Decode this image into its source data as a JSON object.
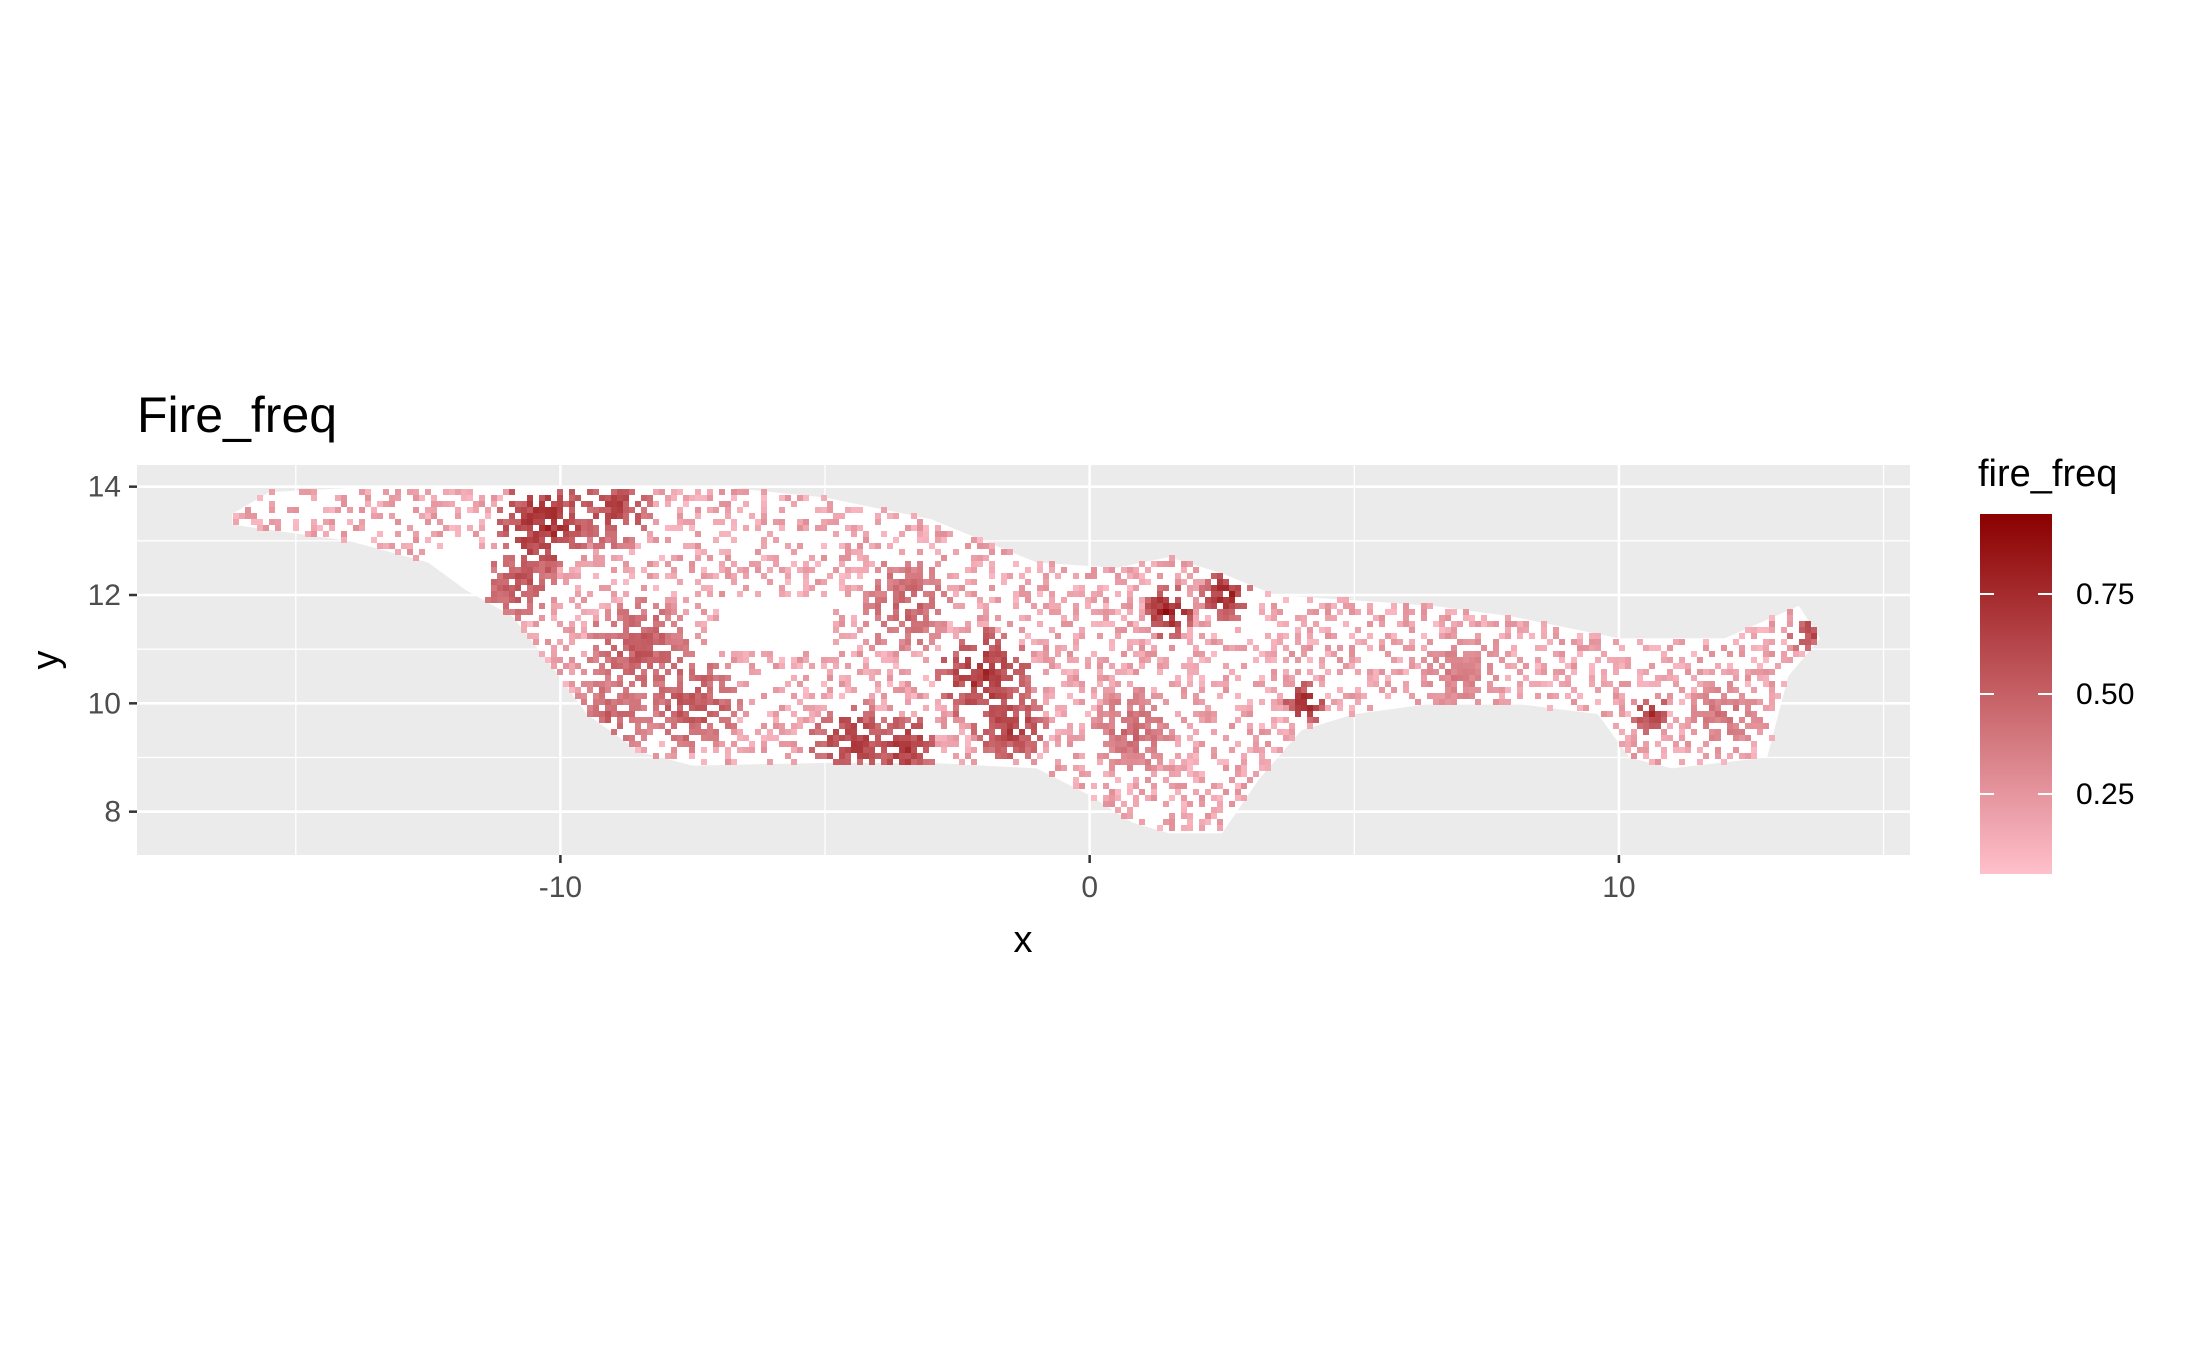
{
  "chart_data": {
    "type": "heatmap",
    "title": "Fire_freq",
    "xlabel": "x",
    "ylabel": "y",
    "xlim": [
      -18,
      15.5
    ],
    "ylim": [
      7.2,
      14.4
    ],
    "x_ticks": [
      -10,
      0,
      10
    ],
    "x_tick_labels": [
      "-10",
      "0",
      "10"
    ],
    "y_ticks": [
      8,
      10,
      12,
      14
    ],
    "y_tick_labels": [
      "8",
      "10",
      "12",
      "14"
    ],
    "grid": true,
    "panel_background": "#ebebeb",
    "legend": {
      "title": "fire_freq",
      "position": "right",
      "breaks": [
        0.25,
        0.5,
        0.75
      ],
      "break_labels": [
        "0.25",
        "0.50",
        "0.75"
      ],
      "range": [
        0.05,
        0.95
      ],
      "low_color": "#ffc0cb",
      "high_color": "#8b0000"
    },
    "region_outline": [
      [
        -16.2,
        13.5
      ],
      [
        -15.5,
        13.9
      ],
      [
        -13.5,
        14.0
      ],
      [
        -11,
        14.0
      ],
      [
        -9,
        14.0
      ],
      [
        -7,
        14.0
      ],
      [
        -5,
        13.8
      ],
      [
        -4,
        13.6
      ],
      [
        -3,
        13.4
      ],
      [
        -2,
        13.0
      ],
      [
        -1,
        12.6
      ],
      [
        0.5,
        12.5
      ],
      [
        1.5,
        12.7
      ],
      [
        2.5,
        12.4
      ],
      [
        3.5,
        12.0
      ],
      [
        5,
        11.9
      ],
      [
        6.5,
        11.8
      ],
      [
        8,
        11.6
      ],
      [
        10,
        11.2
      ],
      [
        12,
        11.2
      ],
      [
        13.4,
        11.8
      ],
      [
        13.8,
        11.2
      ],
      [
        13.2,
        10.5
      ],
      [
        12.8,
        9.0
      ],
      [
        11,
        8.8
      ],
      [
        10.2,
        9.0
      ],
      [
        9.6,
        9.8
      ],
      [
        8,
        10.0
      ],
      [
        6.5,
        10.0
      ],
      [
        5,
        9.8
      ],
      [
        4,
        9.5
      ],
      [
        3.2,
        8.6
      ],
      [
        2.5,
        7.6
      ],
      [
        1.5,
        7.6
      ],
      [
        0.8,
        7.8
      ],
      [
        0,
        8.3
      ],
      [
        -1,
        8.8
      ],
      [
        -3,
        8.9
      ],
      [
        -5,
        8.9
      ],
      [
        -7.5,
        8.85
      ],
      [
        -8.5,
        9.1
      ],
      [
        -9.5,
        9.8
      ],
      [
        -10.1,
        10.6
      ],
      [
        -10.9,
        11.6
      ],
      [
        -11.8,
        12.1
      ],
      [
        -12.5,
        12.6
      ],
      [
        -14,
        13.0
      ],
      [
        -16.2,
        13.3
      ]
    ],
    "gaps": [
      [
        [
          -12.3,
          12.1
        ],
        [
          -11.3,
          12.1
        ],
        [
          -11.3,
          12.9
        ],
        [
          -12.3,
          12.9
        ]
      ],
      [
        [
          -7.0,
          11.0
        ],
        [
          -4.8,
          11.0
        ],
        [
          -4.8,
          12.0
        ],
        [
          -7.0,
          12.0
        ]
      ]
    ],
    "hotspots": [
      {
        "x": -10.3,
        "y": 13.3,
        "value": 0.9,
        "r": 0.9
      },
      {
        "x": -9.0,
        "y": 13.6,
        "value": 0.75,
        "r": 0.8
      },
      {
        "x": -10.8,
        "y": 12.2,
        "value": 0.7,
        "r": 0.7
      },
      {
        "x": -8.5,
        "y": 11.0,
        "value": 0.65,
        "r": 1.0
      },
      {
        "x": -7.5,
        "y": 10.0,
        "value": 0.7,
        "r": 0.9
      },
      {
        "x": -9.0,
        "y": 9.8,
        "value": 0.6,
        "r": 0.8
      },
      {
        "x": -4.5,
        "y": 9.3,
        "value": 0.8,
        "r": 0.8
      },
      {
        "x": -3.5,
        "y": 9.2,
        "value": 0.85,
        "r": 0.6
      },
      {
        "x": -2.0,
        "y": 10.5,
        "value": 0.85,
        "r": 0.9
      },
      {
        "x": -1.5,
        "y": 9.6,
        "value": 0.8,
        "r": 0.7
      },
      {
        "x": -3.5,
        "y": 11.8,
        "value": 0.6,
        "r": 0.9
      },
      {
        "x": 1.5,
        "y": 11.7,
        "value": 0.95,
        "r": 0.5
      },
      {
        "x": 2.6,
        "y": 12.0,
        "value": 0.9,
        "r": 0.5
      },
      {
        "x": 4.1,
        "y": 10.0,
        "value": 0.9,
        "r": 0.4
      },
      {
        "x": 10.6,
        "y": 9.8,
        "value": 0.85,
        "r": 0.35
      },
      {
        "x": 13.6,
        "y": 11.3,
        "value": 0.75,
        "r": 0.4
      },
      {
        "x": 0.8,
        "y": 9.5,
        "value": 0.55,
        "r": 0.8
      },
      {
        "x": 7.0,
        "y": 10.6,
        "value": 0.45,
        "r": 0.8
      },
      {
        "x": 12.0,
        "y": 9.8,
        "value": 0.5,
        "r": 0.7
      }
    ]
  }
}
